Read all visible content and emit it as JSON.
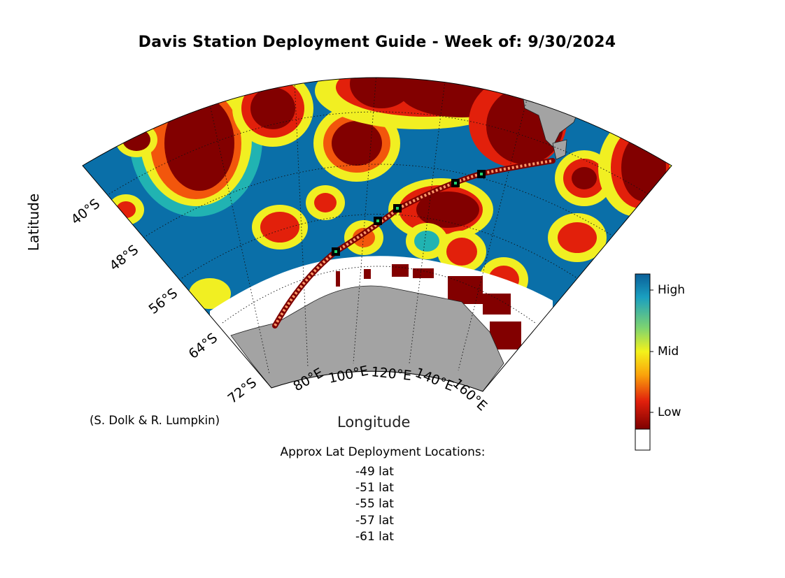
{
  "title": "Davis Station Deployment Guide - Week of: 9/30/2024",
  "axes": {
    "xlabel": "Longitude",
    "ylabel": "Latitude",
    "lat_ticks": [
      "40°S",
      "48°S",
      "56°S",
      "64°S",
      "72°S"
    ],
    "lon_ticks": [
      "80°E",
      "100°E",
      "120°E",
      "140°E",
      "160°E"
    ]
  },
  "credit": "(S. Dolk & R. Lumpkin)",
  "colorbar": {
    "labels": [
      "High",
      "Mid",
      "Low"
    ],
    "colors": [
      "#0a6fa8",
      "#1fb3b8",
      "#7ed66b",
      "#f4f01a",
      "#fba30b",
      "#e8200c",
      "#7d0000"
    ]
  },
  "deployment": {
    "heading": "Approx Lat Deployment Locations:",
    "locations": [
      "-49 lat",
      "-51 lat",
      "-55 lat",
      "-57 lat",
      "-61 lat"
    ]
  },
  "colors": {
    "land": "#a3a3a3",
    "ice": "#ffffff",
    "ocean_base": "#0a6fa8",
    "ship_track": "#7d0000"
  }
}
